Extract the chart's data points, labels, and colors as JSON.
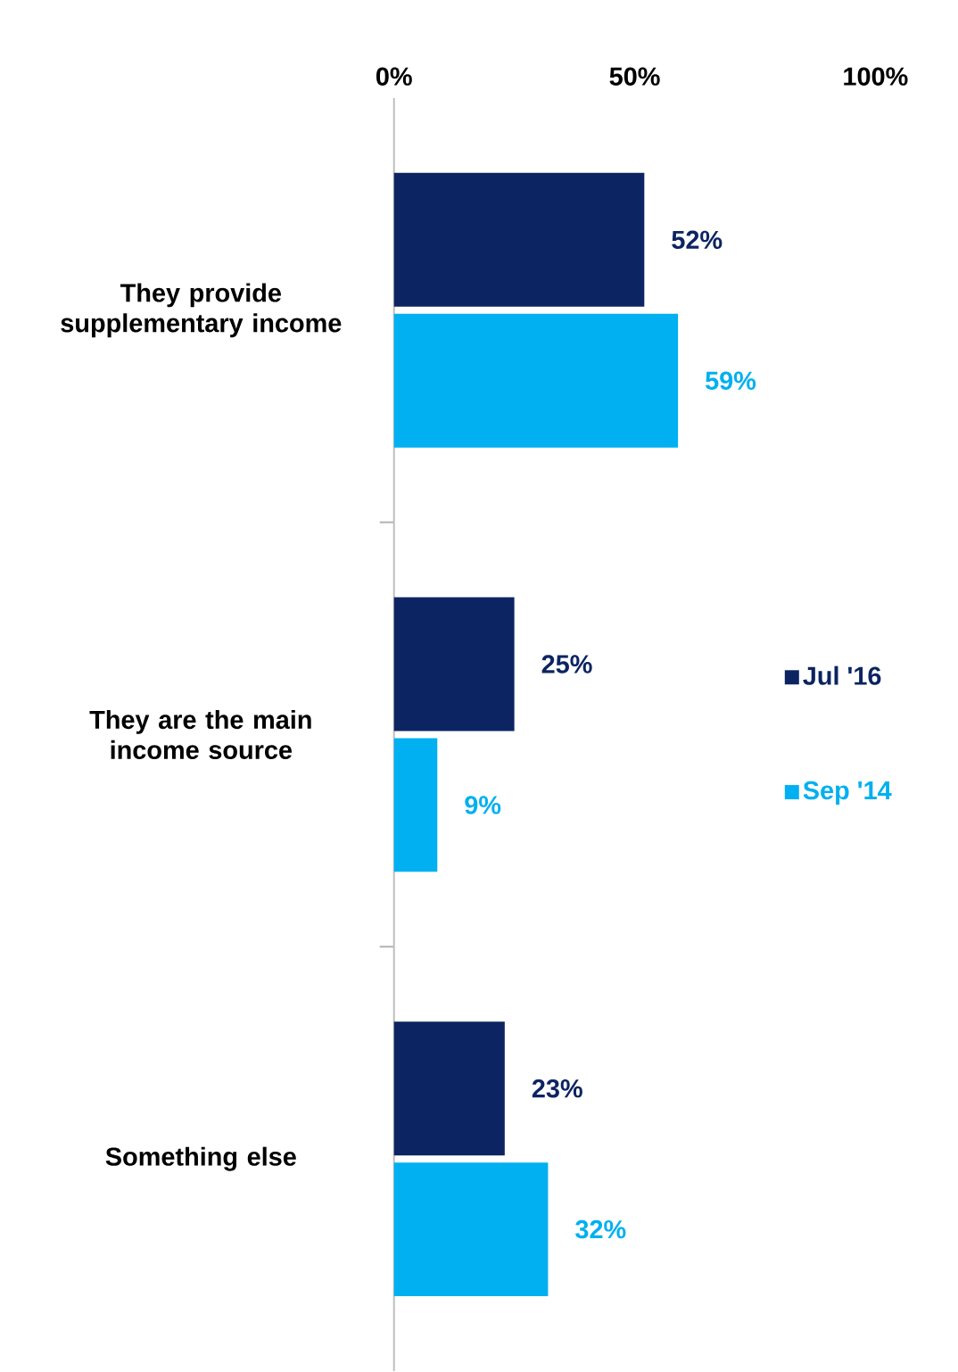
{
  "chart_data": {
    "type": "bar",
    "orientation": "horizontal",
    "categories": [
      "They provide supplementary income",
      "They are the main income source",
      "Something else"
    ],
    "series": [
      {
        "name": "Jul '16",
        "color": "#0c2461",
        "values": [
          52,
          25,
          23
        ],
        "value_labels": [
          "52%",
          "25%",
          "23%"
        ]
      },
      {
        "name": "Sep '14",
        "color": "#00b0f0",
        "values": [
          59,
          9,
          32
        ],
        "value_labels": [
          "59%",
          "9%",
          "32%"
        ]
      }
    ],
    "xlim": [
      0,
      100
    ],
    "xticks": [
      {
        "value": 0,
        "label": "0%"
      },
      {
        "value": 50,
        "label": "50%"
      },
      {
        "value": 100,
        "label": "100%"
      }
    ],
    "legend": "right"
  }
}
